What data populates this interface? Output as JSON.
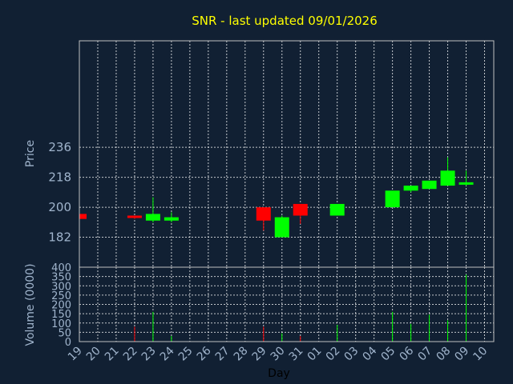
{
  "chart_data": {
    "type": "candlestick",
    "title": "SNR - last updated 09/01/2026",
    "ylabel": "Price",
    "volume_label": "Volume (0000)",
    "xlabel": "Day",
    "colors": {
      "up": "#00ff00",
      "down": "#ff0000",
      "title": "#ffff00",
      "background": "#112033"
    },
    "price": {
      "ylim": [
        164,
        300
      ],
      "yticks": [
        182,
        200,
        218,
        236
      ]
    },
    "volume": {
      "ylim": [
        0,
        400
      ],
      "yticks": [
        0,
        50,
        100,
        150,
        200,
        250,
        300,
        350,
        400
      ]
    },
    "x_labels": [
      "19",
      "20",
      "21",
      "22",
      "23",
      "24",
      "25",
      "26",
      "27",
      "28",
      "29",
      "30",
      "31",
      "01",
      "02",
      "03",
      "04",
      "05",
      "06",
      "07",
      "08",
      "09",
      "10"
    ],
    "candles": [
      {
        "day": "19",
        "open": 196,
        "high": 196,
        "low": 193,
        "close": 193,
        "volume": 0
      },
      {
        "day": "22",
        "open": 195,
        "high": 195,
        "low": 193,
        "close": 194,
        "volume": 80
      },
      {
        "day": "23",
        "open": 192,
        "high": 206,
        "low": 191,
        "close": 196,
        "volume": 160
      },
      {
        "day": "24",
        "open": 192,
        "high": 197,
        "low": 191,
        "close": 194,
        "volume": 30
      },
      {
        "day": "29",
        "open": 200,
        "high": 200,
        "low": 186,
        "close": 192,
        "volume": 80
      },
      {
        "day": "30",
        "open": 182,
        "high": 195,
        "low": 182,
        "close": 194,
        "volume": 45
      },
      {
        "day": "31",
        "open": 202,
        "high": 202,
        "low": 190,
        "close": 195,
        "volume": 30
      },
      {
        "day": "02",
        "open": 195,
        "high": 202,
        "low": 195,
        "close": 202,
        "volume": 90
      },
      {
        "day": "05",
        "open": 200,
        "high": 210,
        "low": 200,
        "close": 210,
        "volume": 160
      },
      {
        "day": "06",
        "open": 210,
        "high": 213,
        "low": 209,
        "close": 213,
        "volume": 95
      },
      {
        "day": "07",
        "open": 211,
        "high": 216,
        "low": 211,
        "close": 216,
        "volume": 145
      },
      {
        "day": "08",
        "open": 213,
        "high": 230,
        "low": 213,
        "close": 222,
        "volume": 115
      },
      {
        "day": "09",
        "open": 215,
        "high": 222,
        "low": 213,
        "close": 215,
        "volume": 360
      }
    ]
  }
}
